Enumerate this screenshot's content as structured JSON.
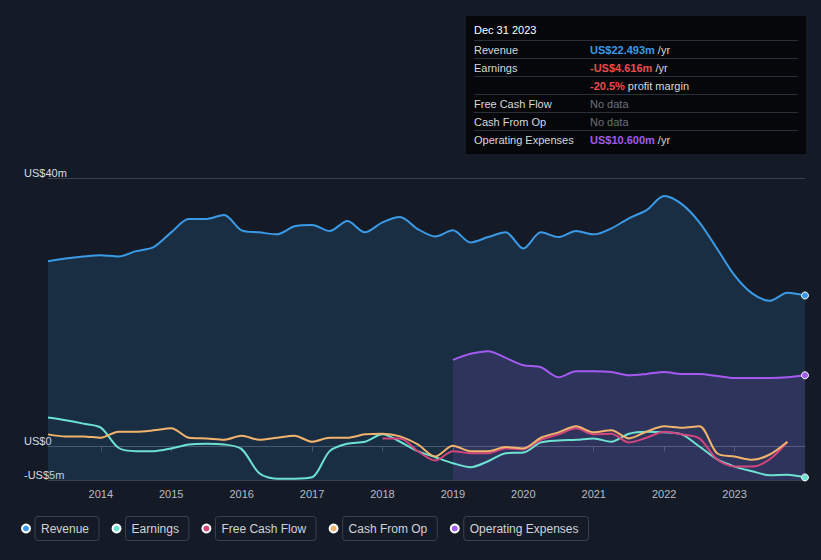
{
  "chart_data": {
    "type": "line",
    "x": [
      2013.25,
      2013.5,
      2013.75,
      2014,
      2014.25,
      2014.5,
      2014.75,
      2015,
      2015.25,
      2015.5,
      2015.75,
      2016,
      2016.25,
      2016.5,
      2016.75,
      2017,
      2017.25,
      2017.5,
      2017.75,
      2018,
      2018.25,
      2018.5,
      2018.75,
      2019,
      2019.25,
      2019.5,
      2019.75,
      2020,
      2020.25,
      2020.5,
      2020.75,
      2021,
      2021.25,
      2021.5,
      2021.75,
      2022,
      2022.25,
      2022.5,
      2022.75,
      2023,
      2023.25,
      2023.5,
      2023.75,
      2024
    ],
    "xlim": [
      2013.25,
      2024
    ],
    "xticks": [
      2014,
      2015,
      2016,
      2017,
      2018,
      2019,
      2020,
      2021,
      2022,
      2023
    ],
    "ylim": [
      -5,
      40
    ],
    "yticks": [
      {
        "value": 40,
        "label": "US$40m"
      },
      {
        "value": 0,
        "label": "US$0"
      },
      {
        "value": -5,
        "label": "-US$5m"
      }
    ],
    "grid": true,
    "legend": "bottom",
    "series": [
      {
        "name": "Revenue",
        "type": "area",
        "color": "#3b9ae6",
        "values": [
          27.6,
          28.0,
          28.3,
          28.5,
          28.3,
          29.1,
          29.7,
          31.9,
          33.9,
          33.9,
          34.5,
          32.2,
          31.9,
          31.6,
          32.8,
          33.0,
          32.1,
          33.6,
          31.9,
          33.4,
          34.2,
          32.4,
          31.3,
          32.2,
          30.4,
          31.2,
          31.9,
          29.5,
          31.9,
          31.2,
          32.1,
          31.6,
          32.5,
          34.0,
          35.2,
          37.3,
          36.1,
          33.4,
          29.5,
          25.5,
          22.8,
          21.7,
          22.9,
          22.493
        ]
      },
      {
        "name": "Earnings",
        "type": "line",
        "color": "#6ee2d2",
        "values": [
          4.3,
          3.9,
          3.4,
          2.8,
          -0.2,
          -0.7,
          -0.7,
          -0.3,
          0.3,
          0.4,
          0.3,
          -0.4,
          -4.0,
          -4.8,
          -4.8,
          -4.6,
          -0.7,
          0.4,
          0.7,
          1.8,
          0.7,
          -0.7,
          -1.6,
          -2.5,
          -3.1,
          -2.2,
          -1.0,
          -0.9,
          0.6,
          0.9,
          1.0,
          1.2,
          0.7,
          1.9,
          2.2,
          2.1,
          1.8,
          0.0,
          -1.9,
          -3.0,
          -3.7,
          -4.3,
          -4.2,
          -4.616
        ]
      },
      {
        "name": "Free Cash Flow",
        "type": "line",
        "color": "#d2457d",
        "values": [
          null,
          null,
          null,
          null,
          null,
          null,
          null,
          null,
          null,
          null,
          null,
          null,
          null,
          null,
          null,
          null,
          null,
          null,
          null,
          1.2,
          1.2,
          -0.7,
          -2.1,
          -0.7,
          -1.0,
          -1.0,
          -0.3,
          -0.4,
          1.0,
          1.8,
          2.7,
          1.8,
          1.9,
          0.6,
          1.3,
          2.2,
          1.8,
          1.2,
          -1.9,
          -3.0,
          -3.0,
          -1.9,
          0.7,
          null
        ]
      },
      {
        "name": "Cash From Op",
        "type": "line",
        "color": "#f2b46c",
        "values": [
          1.8,
          1.5,
          1.5,
          1.3,
          2.2,
          2.2,
          2.4,
          2.7,
          1.3,
          1.2,
          1.0,
          1.6,
          1.0,
          1.3,
          1.6,
          0.7,
          1.3,
          1.3,
          1.8,
          1.9,
          1.5,
          0.3,
          -1.5,
          0.1,
          -0.7,
          -0.7,
          -0.1,
          -0.3,
          1.3,
          2.1,
          3.0,
          2.1,
          2.4,
          1.2,
          2.2,
          3.0,
          2.8,
          3.0,
          -1.0,
          -1.5,
          -2.0,
          -1.2,
          0.7,
          null
        ]
      },
      {
        "name": "Operating Expenses",
        "type": "area",
        "color": "#a45af0",
        "values": [
          null,
          null,
          null,
          null,
          null,
          null,
          null,
          null,
          null,
          null,
          null,
          null,
          null,
          null,
          null,
          null,
          null,
          null,
          null,
          null,
          null,
          null,
          null,
          12.9,
          13.8,
          14.2,
          13.2,
          12.1,
          11.8,
          10.3,
          11.2,
          11.2,
          11.1,
          10.6,
          10.8,
          11.1,
          10.8,
          10.8,
          10.5,
          10.2,
          10.2,
          10.2,
          10.3,
          10.6
        ]
      }
    ]
  },
  "info_box": {
    "title": "Dec 31 2023",
    "rows": [
      {
        "label": "Revenue",
        "value": "US$22.493m",
        "suffix": "/yr",
        "color": "#3b9ae6"
      },
      {
        "label": "Earnings",
        "value": "-US$4.616m",
        "suffix": "/yr",
        "color": "#ef4b4b"
      },
      {
        "value": "-20.5%",
        "suffix": "profit margin",
        "color": "#ef4b4b"
      },
      {
        "label": "Free Cash Flow",
        "value": "No data",
        "color": "#6b717c"
      },
      {
        "label": "Cash From Op",
        "value": "No data",
        "color": "#6b717c"
      },
      {
        "label": "Operating Expenses",
        "value": "US$10.600m",
        "suffix": "/yr",
        "color": "#a45af0"
      }
    ]
  }
}
